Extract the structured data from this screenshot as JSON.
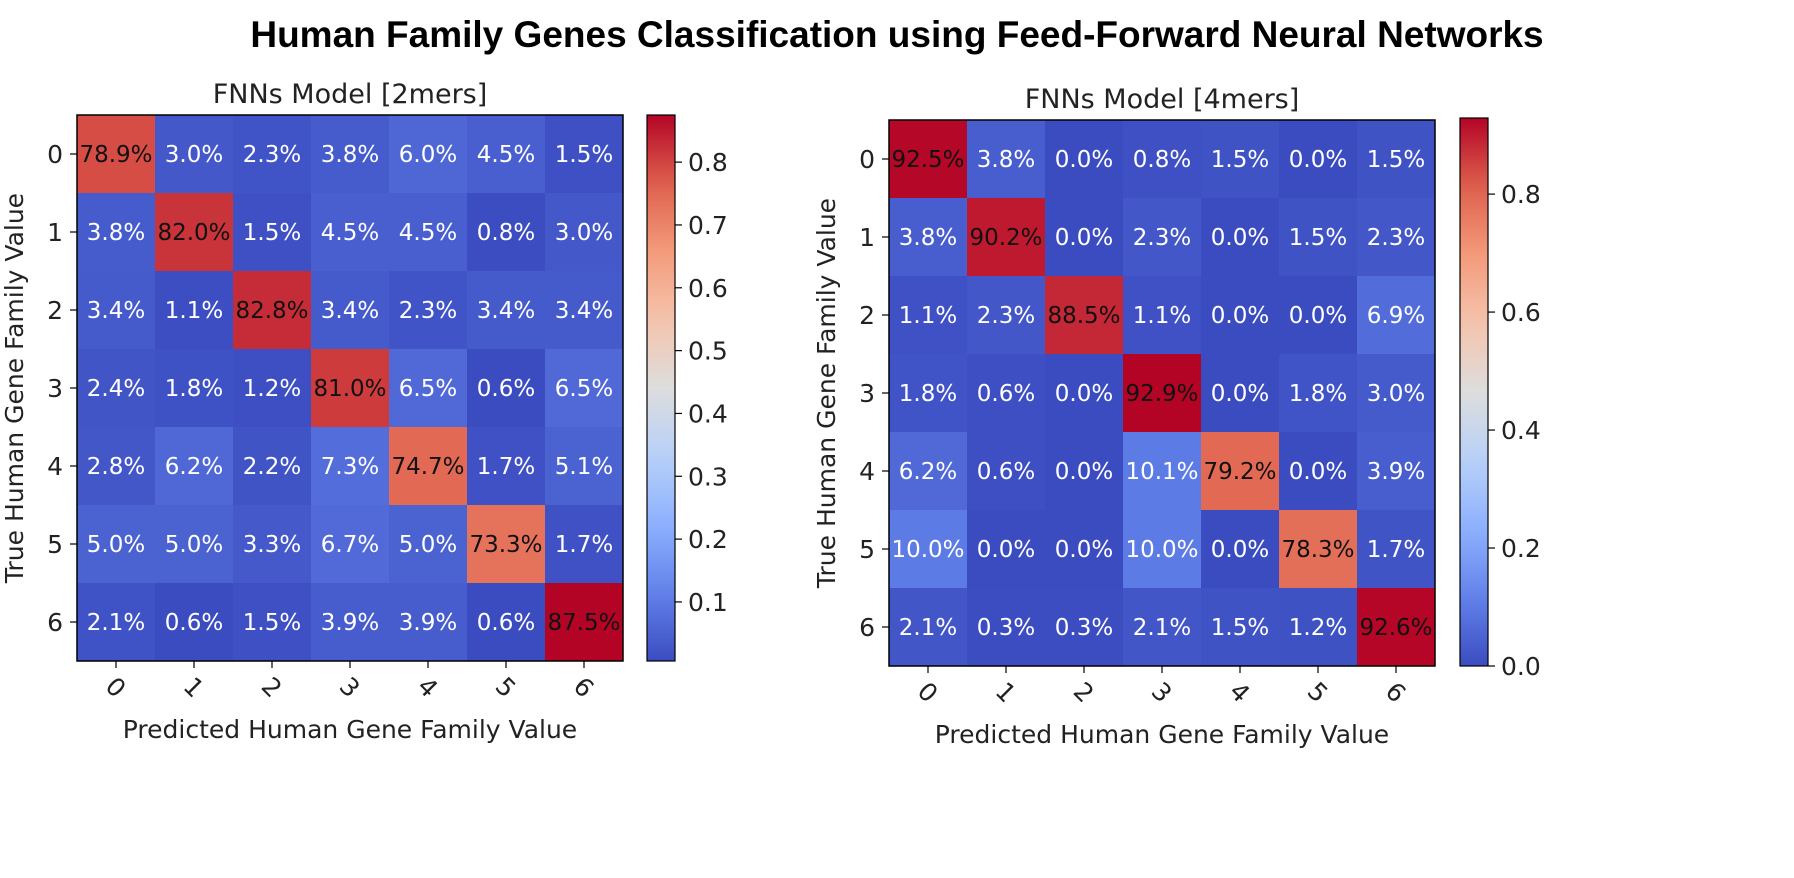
{
  "title": "Human Family Genes Classification using Feed-Forward Neural Networks",
  "chart_data": [
    {
      "type": "heatmap",
      "title": "FNNs Model [2mers]",
      "xlabel": "Predicted Human Gene Family  Value",
      "ylabel": "True Human Gene Family  Value",
      "x_categories": [
        "0",
        "1",
        "2",
        "3",
        "4",
        "5",
        "6"
      ],
      "y_categories": [
        "0",
        "1",
        "2",
        "3",
        "4",
        "5",
        "6"
      ],
      "values": [
        [
          78.9,
          3.0,
          2.3,
          3.8,
          6.0,
          4.5,
          1.5
        ],
        [
          3.8,
          82.0,
          1.5,
          4.5,
          4.5,
          0.8,
          3.0
        ],
        [
          3.4,
          1.1,
          82.8,
          3.4,
          2.3,
          3.4,
          3.4
        ],
        [
          2.4,
          1.8,
          1.2,
          81.0,
          6.5,
          0.6,
          6.5
        ],
        [
          2.8,
          6.2,
          2.2,
          7.3,
          74.7,
          1.7,
          5.1
        ],
        [
          5.0,
          5.0,
          3.3,
          6.7,
          5.0,
          73.3,
          1.7
        ],
        [
          2.1,
          0.6,
          1.5,
          3.9,
          3.9,
          0.6,
          87.5
        ]
      ],
      "cell_labels": [
        [
          "78.9%",
          "3.0%",
          "2.3%",
          "3.8%",
          "6.0%",
          "4.5%",
          "1.5%"
        ],
        [
          "3.8%",
          "82.0%",
          "1.5%",
          "4.5%",
          "4.5%",
          "0.8%",
          "3.0%"
        ],
        [
          "3.4%",
          "1.1%",
          "82.8%",
          "3.4%",
          "2.3%",
          "3.4%",
          "3.4%"
        ],
        [
          "2.4%",
          "1.8%",
          "1.2%",
          "81.0%",
          "6.5%",
          "0.6%",
          "6.5%"
        ],
        [
          "2.8%",
          "6.2%",
          "2.2%",
          "7.3%",
          "74.7%",
          "1.7%",
          "5.1%"
        ],
        [
          "5.0%",
          "5.0%",
          "3.3%",
          "6.7%",
          "5.0%",
          "73.3%",
          "1.7%"
        ],
        [
          "2.1%",
          "0.6%",
          "1.5%",
          "3.9%",
          "3.9%",
          "0.6%",
          "87.5%"
        ]
      ],
      "colorscale": "coolwarm",
      "colorbar_range": [
        0.006,
        0.875
      ],
      "colorbar_ticks": [
        "0.1",
        "0.2",
        "0.3",
        "0.4",
        "0.5",
        "0.6",
        "0.7",
        "0.8"
      ]
    },
    {
      "type": "heatmap",
      "title": "FNNs Model [4mers]",
      "xlabel": "Predicted Human Gene Family  Value",
      "ylabel": "True Human Gene Family  Value",
      "x_categories": [
        "0",
        "1",
        "2",
        "3",
        "4",
        "5",
        "6"
      ],
      "y_categories": [
        "0",
        "1",
        "2",
        "3",
        "4",
        "5",
        "6"
      ],
      "values": [
        [
          92.5,
          3.8,
          0.0,
          0.8,
          1.5,
          0.0,
          1.5
        ],
        [
          3.8,
          90.2,
          0.0,
          2.3,
          0.0,
          1.5,
          2.3
        ],
        [
          1.1,
          2.3,
          88.5,
          1.1,
          0.0,
          0.0,
          6.9
        ],
        [
          1.8,
          0.6,
          0.0,
          92.9,
          0.0,
          1.8,
          3.0
        ],
        [
          6.2,
          0.6,
          0.0,
          10.1,
          79.2,
          0.0,
          3.9
        ],
        [
          10.0,
          0.0,
          0.0,
          10.0,
          0.0,
          78.3,
          1.7
        ],
        [
          2.1,
          0.3,
          0.3,
          2.1,
          1.5,
          1.2,
          92.6
        ]
      ],
      "cell_labels": [
        [
          "92.5%",
          "3.8%",
          "0.0%",
          "0.8%",
          "1.5%",
          "0.0%",
          "1.5%"
        ],
        [
          "3.8%",
          "90.2%",
          "0.0%",
          "2.3%",
          "0.0%",
          "1.5%",
          "2.3%"
        ],
        [
          "1.1%",
          "2.3%",
          "88.5%",
          "1.1%",
          "0.0%",
          "0.0%",
          "6.9%"
        ],
        [
          "1.8%",
          "0.6%",
          "0.0%",
          "92.9%",
          "0.0%",
          "1.8%",
          "3.0%"
        ],
        [
          "6.2%",
          "0.6%",
          "0.0%",
          "10.1%",
          "79.2%",
          "0.0%",
          "3.9%"
        ],
        [
          "10.0%",
          "0.0%",
          "0.0%",
          "10.0%",
          "0.0%",
          "78.3%",
          "1.7%"
        ],
        [
          "2.1%",
          "0.3%",
          "0.3%",
          "2.1%",
          "1.5%",
          "1.2%",
          "92.6%"
        ]
      ],
      "colorscale": "coolwarm",
      "colorbar_range": [
        0.0,
        0.929
      ],
      "colorbar_ticks": [
        "0.0",
        "0.2",
        "0.4",
        "0.6",
        "0.8"
      ]
    }
  ]
}
